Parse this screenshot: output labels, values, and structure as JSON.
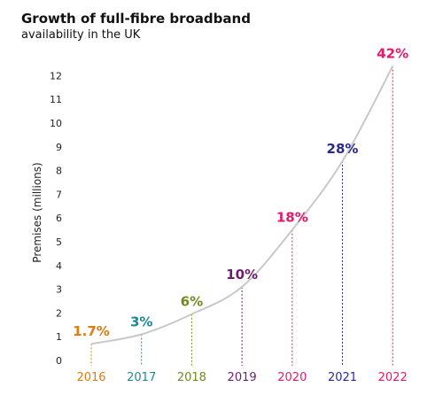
{
  "chart_data": {
    "type": "line",
    "title": "Growth of full-fibre broadband",
    "subtitle": "availability in the UK",
    "xlabel": "",
    "ylabel": "Premises (millions)",
    "ylim": [
      0,
      12.5
    ],
    "y_ticks": [
      "0",
      "1",
      "2",
      "3",
      "4",
      "5",
      "6",
      "7",
      "8",
      "9",
      "10",
      "11",
      "12"
    ],
    "grid": false,
    "categories": [
      "2016",
      "2017",
      "2018",
      "2019",
      "2020",
      "2021",
      "2022"
    ],
    "values": [
      0.7,
      1.1,
      1.95,
      3.1,
      5.5,
      8.4,
      12.4
    ],
    "point_labels": [
      "1.7%",
      "3%",
      "6%",
      "10%",
      "18%",
      "28%",
      "42%"
    ],
    "colors": [
      "#e07b12",
      "#1a8a96",
      "#6e8a1f",
      "#6b1f6e",
      "#e8176a",
      "#2b2a8c",
      "#e8176a"
    ],
    "line_color": "#c8c8c8"
  }
}
